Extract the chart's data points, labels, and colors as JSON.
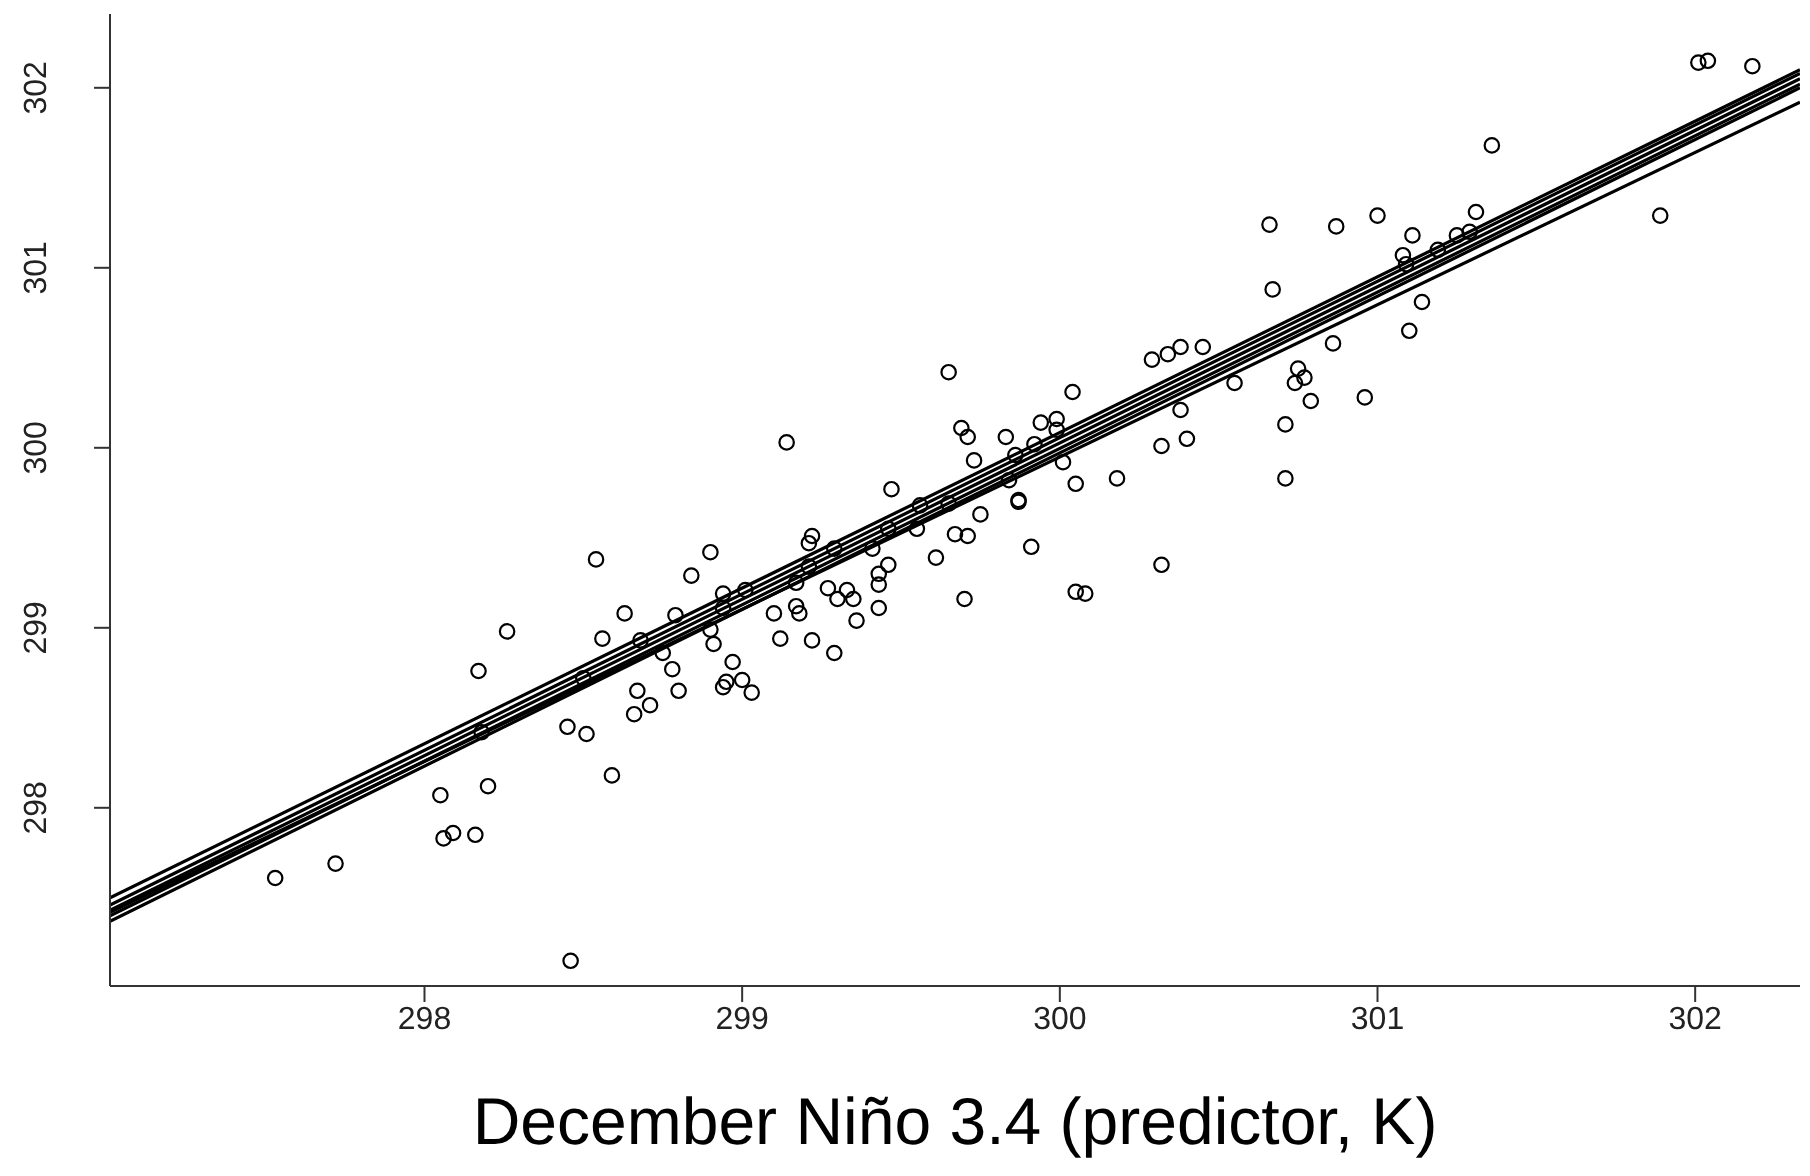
{
  "chart_data": {
    "type": "scatter",
    "xlabel": "December Niño 3.4 (predictor, K)",
    "xlim": [
      297.01,
      302.33
    ],
    "ylim": [
      297.01,
      302.41
    ],
    "xticks": [
      298,
      299,
      300,
      301,
      302
    ],
    "yticks": [
      298,
      299,
      300,
      301,
      302
    ],
    "grid": false,
    "legend": false,
    "marker": "circle",
    "series": [
      {
        "color": "#000000",
        "x": [
          297.53,
          297.72,
          298.05,
          298.06,
          298.09,
          298.16,
          298.2,
          298.18,
          298.17,
          298.26,
          298.46,
          298.45,
          298.51,
          298.5,
          298.59,
          298.54,
          298.56,
          298.63,
          298.68,
          298.75,
          298.67,
          298.66,
          298.71,
          298.79,
          298.78,
          298.8,
          298.84,
          298.9,
          298.94,
          298.94,
          298.9,
          298.91,
          298.97,
          298.95,
          298.94,
          299.0,
          299.01,
          299.03,
          299.14,
          299.12,
          299.1,
          299.18,
          299.17,
          299.17,
          299.22,
          299.29,
          299.21,
          299.21,
          299.22,
          299.29,
          299.27,
          299.33,
          299.3,
          299.35,
          299.36,
          299.43,
          299.43,
          299.43,
          299.46,
          299.41,
          299.46,
          299.47,
          299.55,
          299.56,
          299.61,
          299.65,
          299.67,
          299.71,
          299.7,
          299.75,
          299.73,
          299.69,
          299.71,
          299.65,
          299.83,
          299.86,
          299.84,
          299.87,
          299.87,
          299.91,
          299.92,
          299.94,
          299.99,
          299.99,
          300.01,
          300.05,
          300.04,
          300.05,
          300.08,
          300.18,
          300.32,
          300.32,
          300.29,
          300.34,
          300.38,
          300.45,
          300.4,
          300.38,
          300.55,
          300.66,
          300.67,
          300.71,
          300.71,
          300.74,
          300.75,
          300.77,
          300.79,
          300.86,
          300.87,
          300.96,
          301.0,
          301.1,
          301.14,
          301.09,
          301.08,
          301.11,
          301.19,
          301.25,
          301.29,
          301.31,
          301.36,
          301.89,
          302.01,
          302.04,
          302.18
        ],
        "values": [
          297.61,
          297.69,
          298.07,
          297.83,
          297.86,
          297.85,
          298.12,
          298.42,
          298.76,
          298.98,
          297.15,
          298.45,
          298.41,
          298.72,
          298.18,
          299.38,
          298.94,
          299.08,
          298.93,
          298.86,
          298.65,
          298.52,
          298.57,
          299.07,
          298.77,
          298.65,
          299.29,
          299.42,
          299.19,
          299.11,
          298.99,
          298.91,
          298.81,
          298.7,
          298.67,
          298.71,
          299.21,
          298.64,
          300.03,
          298.94,
          299.08,
          299.08,
          299.12,
          299.25,
          298.93,
          298.86,
          299.34,
          299.47,
          299.51,
          299.44,
          299.22,
          299.21,
          299.16,
          299.16,
          299.04,
          299.11,
          299.24,
          299.3,
          299.35,
          299.44,
          299.55,
          299.77,
          299.55,
          299.68,
          299.39,
          299.69,
          299.52,
          299.51,
          299.16,
          299.63,
          299.93,
          300.11,
          300.06,
          300.42,
          300.06,
          299.96,
          299.82,
          299.71,
          299.7,
          299.45,
          300.02,
          300.14,
          300.16,
          300.1,
          299.92,
          299.8,
          300.31,
          299.2,
          299.19,
          299.83,
          299.35,
          300.01,
          300.49,
          300.52,
          300.56,
          300.56,
          300.05,
          300.21,
          300.36,
          301.24,
          300.88,
          300.13,
          299.83,
          300.36,
          300.44,
          300.39,
          300.26,
          300.58,
          301.23,
          300.28,
          301.29,
          300.65,
          300.81,
          301.02,
          301.07,
          301.18,
          301.1,
          301.18,
          301.2,
          301.31,
          301.68,
          301.29,
          302.14,
          302.15,
          302.12
        ]
      },
      {
        "type": "line",
        "color": "#000000",
        "x": [
          297.01,
          302.33
        ],
        "values": [
          297.5,
          302.1
        ],
        "marker": "none"
      },
      {
        "type": "line",
        "color": "#000000",
        "x": [
          297.01,
          302.33
        ],
        "values": [
          297.46,
          302.08
        ],
        "marker": "none"
      },
      {
        "type": "line",
        "color": "#000000",
        "x": [
          297.01,
          302.33
        ],
        "values": [
          297.43,
          302.05
        ],
        "marker": "none"
      },
      {
        "type": "line",
        "color": "#000000",
        "x": [
          297.01,
          302.33
        ],
        "values": [
          297.4,
          302.02
        ],
        "marker": "none"
      },
      {
        "type": "line",
        "color": "#000000",
        "x": [
          297.01,
          302.33
        ],
        "values": [
          297.37,
          302.0
        ],
        "marker": "none"
      },
      {
        "type": "line",
        "color": "#000000",
        "x": [
          297.01,
          302.33
        ],
        "values": [
          297.42,
          301.92
        ],
        "marker": "none"
      }
    ]
  }
}
